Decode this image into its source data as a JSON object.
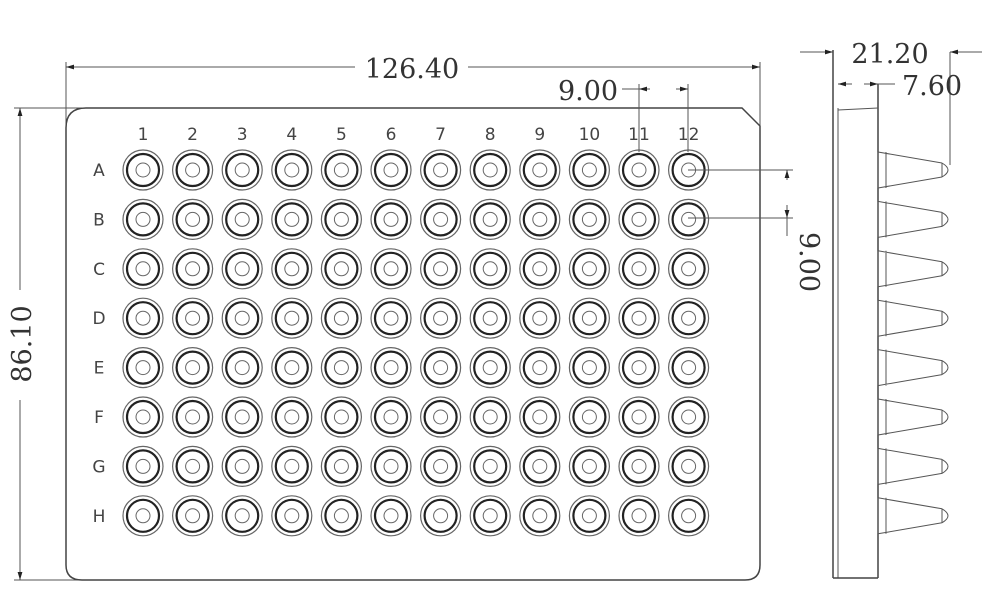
{
  "dimensions": {
    "width": "126.40",
    "height": "86.10",
    "pitch_horizontal": "9.00",
    "pitch_vertical": "9.00",
    "side_height": "21.20",
    "skirt_height": "7.60"
  },
  "plate": {
    "columns": [
      "1",
      "2",
      "3",
      "4",
      "5",
      "6",
      "7",
      "8",
      "9",
      "10",
      "11",
      "12"
    ],
    "rows": [
      "A",
      "B",
      "C",
      "D",
      "E",
      "F",
      "G",
      "H"
    ]
  }
}
